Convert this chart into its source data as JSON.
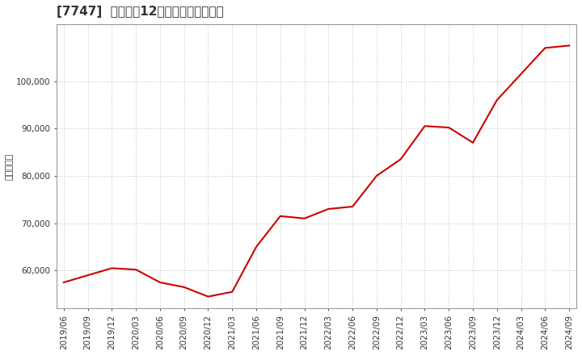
{
  "title": "[7747]  売上高の12か月移動合計の推移",
  "ylabel": "（百万円）",
  "line_color": "#cc0000",
  "background_color": "#ffffff",
  "plot_bg_color": "#ffffff",
  "grid_color": "#bbbbbb",
  "dates": [
    "2019/06",
    "2019/09",
    "2019/12",
    "2020/03",
    "2020/06",
    "2020/09",
    "2020/12",
    "2021/03",
    "2021/06",
    "2021/09",
    "2021/12",
    "2022/03",
    "2022/06",
    "2022/09",
    "2022/12",
    "2023/03",
    "2023/06",
    "2023/09",
    "2023/12",
    "2024/03",
    "2024/06",
    "2024/09"
  ],
  "values": [
    57500,
    59000,
    60500,
    60200,
    57500,
    56500,
    54500,
    55500,
    65000,
    71500,
    71000,
    73000,
    73500,
    80000,
    83500,
    90500,
    90200,
    87000,
    96000,
    101500,
    107000,
    107500
  ],
  "ylim": [
    52000,
    112000
  ],
  "yticks": [
    60000,
    70000,
    80000,
    90000,
    100000
  ],
  "title_fontsize": 11,
  "label_fontsize": 8,
  "tick_fontsize": 7.5,
  "title_color": "#333333",
  "tick_color": "#333333"
}
